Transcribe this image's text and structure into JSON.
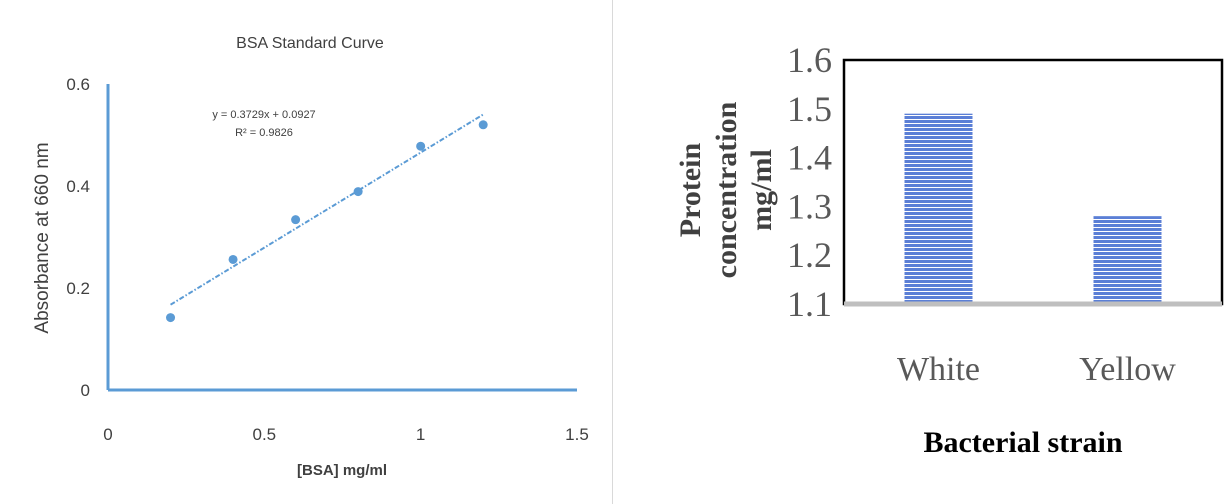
{
  "chart_data": [
    {
      "type": "scatter",
      "title": "BSA Standard Curve",
      "xlabel": "[BSA] mg/ml",
      "ylabel": "Absorbance at 660 nm",
      "xlim": [
        0,
        1.5
      ],
      "ylim": [
        0,
        0.6
      ],
      "xticks": [
        "0",
        "0.5",
        "1",
        "1.5"
      ],
      "yticks": [
        "0",
        "0.2",
        "0.4",
        "0.6"
      ],
      "grid": false,
      "points": [
        {
          "x": 0.2,
          "y": 0.142
        },
        {
          "x": 0.4,
          "y": 0.256
        },
        {
          "x": 0.6,
          "y": 0.334
        },
        {
          "x": 0.8,
          "y": 0.389
        },
        {
          "x": 1.0,
          "y": 0.478
        },
        {
          "x": 1.2,
          "y": 0.52
        }
      ],
      "trendline": {
        "slope": 0.3729,
        "intercept": 0.0927,
        "x_from": 0.2,
        "x_to": 1.2
      },
      "annotation": {
        "equation": "y = 0.3729x + 0.0927",
        "r_squared": "R² = 0.9826"
      },
      "colors": {
        "points": "#5b9bd5",
        "axis": "#5b9bd5",
        "trendline": "#5b9bd5"
      }
    },
    {
      "type": "bar",
      "categories": [
        "White",
        "Yellow"
      ],
      "values": [
        1.49,
        1.28
      ],
      "xlabel": "Bacterial strain",
      "ylabel": [
        "Protein",
        "concentration",
        "mg/ml"
      ],
      "ylim": [
        1.1,
        1.6
      ],
      "yticks": [
        "1.1",
        "1.2",
        "1.3",
        "1.4",
        "1.5",
        "1.6"
      ],
      "grid": false,
      "colors": {
        "bars": "#5b7fd6",
        "stripes": "#ffffff",
        "frame": "#000000"
      }
    }
  ]
}
